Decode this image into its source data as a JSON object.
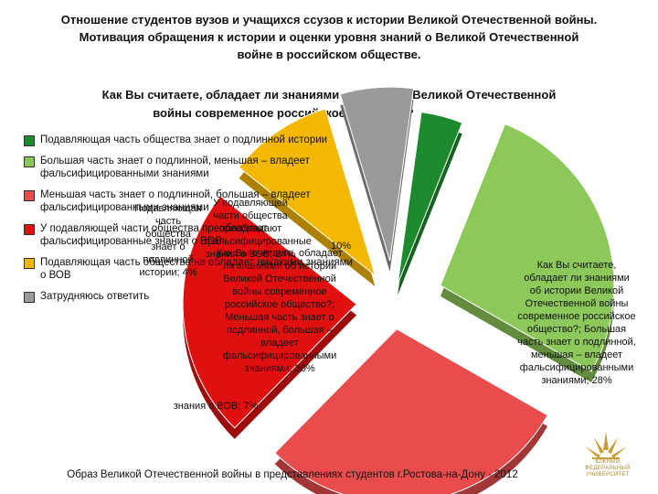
{
  "title": "Отношение студентов вузов и учащихся ссузов к истории Великой Отечественной войны.\nМотивация обращения к истории и оценки уровня знаний о Великой Отечественной\nвойне в российском обществе.",
  "chart_data": {
    "type": "pie",
    "title": "Как Вы считаете, обладает ли знаниями об истории Великой Отечественной войны современное российское общество?",
    "slices": [
      {
        "name": "Подавляющая часть общества знает о подлинной истории",
        "value": 4,
        "label": "Подавляющая часть общества знает о подлинной истории; 4%",
        "color": "#1e8a2e"
      },
      {
        "name": "Большая часть знает о подлинной, меньшая – владеет фальсифицированными знаниями",
        "value": 28,
        "label": "Как Вы считаете, обладает ли знаниями об истории Великой Отечественной войны современное российское общество?; Большая часть знает о подлинной, меньшая – владеет фальсифицированными знаниями; 28%",
        "color": "#8dc85a"
      },
      {
        "name": "Меньшая часть знает о подлинной, большая – владеет фальсифицированными знаниями",
        "value": 30,
        "label": "Как Вы считаете, обладает ли знаниями об истории Великой Отечественной войны современное российское общество?; Меньшая часть знает о подлинной, большая – владеет фальсифицированными знаниями; 30%",
        "color": "#e84c4c"
      },
      {
        "name": "У подавляющей части общества преобладают фальсифицированные знания о ВОВ",
        "value": 24,
        "label": "У подавляющей части общества преобладают фальсифицированные знания о ВОВ; 24%",
        "color": "#e01010"
      },
      {
        "name": "Подавляющая часть общества не обладает никакими знаниями о ВОВ",
        "value": 10,
        "label": "10%",
        "color": "#f5b800"
      },
      {
        "name": "Затрудняюсь ответить",
        "value": 7,
        "label": "знания о ВОВ; 7%",
        "color": "#9a9a9a"
      }
    ],
    "legend_position": "left"
  },
  "legend": [
    {
      "text": "Подавляющая часть общества знает о подлинной истории",
      "color": "#1e8a2e"
    },
    {
      "text": "Большая часть знает о подлинной, меньшая – владеет фальсифицированными знаниями",
      "color": "#8dc85a"
    },
    {
      "text": "Меньшая часть знает о подлинной, большая – владеет фальсифицированными знаниями",
      "color": "#e84c4c"
    },
    {
      "text": "У подавляющей части общества преобладают фальсифицированные знания о ВОВ",
      "color": "#e01010"
    },
    {
      "text": "Подавляющая часть общества не обладает никакими знаниями о ВОВ",
      "color": "#f5b800"
    },
    {
      "text": "Затрудняюсь ответить",
      "color": "#9a9a9a"
    }
  ],
  "footer": "Образ Великой Отечественной войны в представлениях студентов г.Ростова-на-Дону - 2012",
  "logo_text": "ЮЖНЫЙ\nФЕДЕРАЛЬНЫЙ\nУНИВЕРСИТЕТ"
}
